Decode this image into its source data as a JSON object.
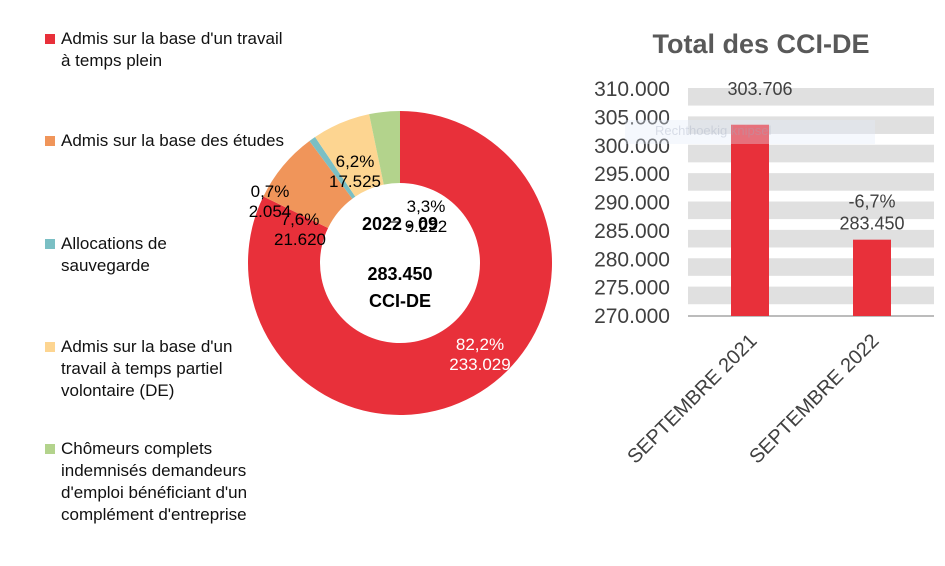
{
  "chart_data": [
    {
      "type": "pie",
      "variant": "donut",
      "center_label": [
        "2022 - 09",
        "283.450",
        "CCI-DE"
      ],
      "series": [
        {
          "name": "Admis sur la base d'un travail à temps plein",
          "value": 233029,
          "value_label": "233.029",
          "percent_label": "82,2%",
          "color": "#E8303A"
        },
        {
          "name": "Admis sur la base des études",
          "value": 21620,
          "value_label": "21.620",
          "percent_label": "7,6%",
          "color": "#F0955A"
        },
        {
          "name": "Allocations de sauvegarde",
          "value": 2054,
          "value_label": "2.054",
          "percent_label": "0,7%",
          "color": "#7ABFC4"
        },
        {
          "name": "Admis sur la base d'un travail à temps partiel volontaire (DE)",
          "value": 17525,
          "value_label": "17.525",
          "percent_label": "6,2%",
          "color": "#FDD591"
        },
        {
          "name": "Chômeurs complets indemnisés demandeurs d'emploi bénéficiant d'un complément d'entreprise",
          "value": 9222,
          "value_label": "9.222",
          "percent_label": "3,3%",
          "color": "#B3D38C"
        }
      ],
      "legend_position": "left"
    },
    {
      "type": "bar",
      "title": "Total des CCI-DE",
      "categories": [
        "SEPTEMBRE 2021",
        "SEPTEMBRE 2022"
      ],
      "values": [
        303706,
        283450
      ],
      "value_labels": [
        "303.706",
        "283.450"
      ],
      "change_labels": [
        "",
        "-6,7%"
      ],
      "ylim": [
        270000,
        310000
      ],
      "yticks": [
        "270.000",
        "275.000",
        "280.000",
        "285.000",
        "290.000",
        "295.000",
        "300.000",
        "305.000",
        "310.000"
      ],
      "ytick_values": [
        270000,
        275000,
        280000,
        285000,
        290000,
        295000,
        300000,
        305000,
        310000
      ],
      "bar_color": "#E8303A",
      "grid": "banded",
      "xlabel": "",
      "ylabel": ""
    }
  ],
  "overlay": {
    "ghost_text": "Rechthoekig knipsel"
  }
}
